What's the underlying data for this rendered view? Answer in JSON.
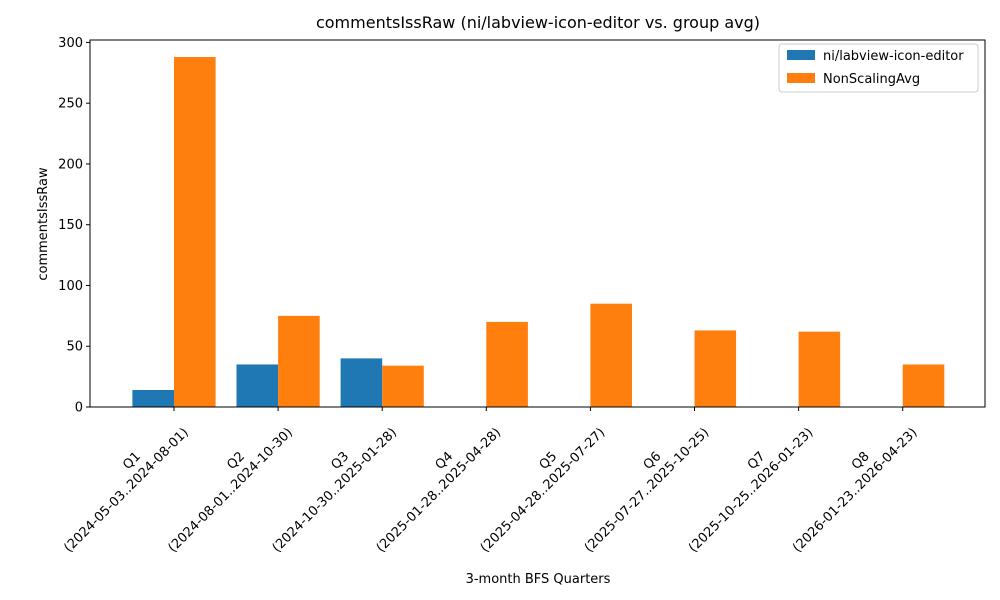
{
  "chart_data": {
    "type": "bar",
    "title": "commentsIssRaw (ni/labview-icon-editor vs. group avg)",
    "xlabel": "3-month BFS Quarters",
    "ylabel": "commentsIssRaw",
    "ylim": [
      0,
      302
    ],
    "yticks": [
      0,
      50,
      100,
      150,
      200,
      250,
      300
    ],
    "categories": [
      {
        "quarter": "Q1",
        "range": "(2024-05-03..2024-08-01)"
      },
      {
        "quarter": "Q2",
        "range": "(2024-08-01..2024-10-30)"
      },
      {
        "quarter": "Q3",
        "range": "(2024-10-30..2025-01-28)"
      },
      {
        "quarter": "Q4",
        "range": "(2025-01-28..2025-04-28)"
      },
      {
        "quarter": "Q5",
        "range": "(2025-04-28..2025-07-27)"
      },
      {
        "quarter": "Q6",
        "range": "(2025-07-27..2025-10-25)"
      },
      {
        "quarter": "Q7",
        "range": "(2025-10-25..2026-01-23)"
      },
      {
        "quarter": "Q8",
        "range": "(2026-01-23..2026-04-23)"
      }
    ],
    "series": [
      {
        "name": "ni/labview-icon-editor",
        "color": "#1f77b4",
        "values": [
          14,
          35,
          40,
          0,
          0,
          0,
          0,
          0
        ]
      },
      {
        "name": "NonScalingAvg",
        "color": "#ff7f0e",
        "values": [
          288,
          75,
          34,
          70,
          85,
          63,
          62,
          35
        ]
      }
    ],
    "legend": "top-right",
    "grid": false
  }
}
